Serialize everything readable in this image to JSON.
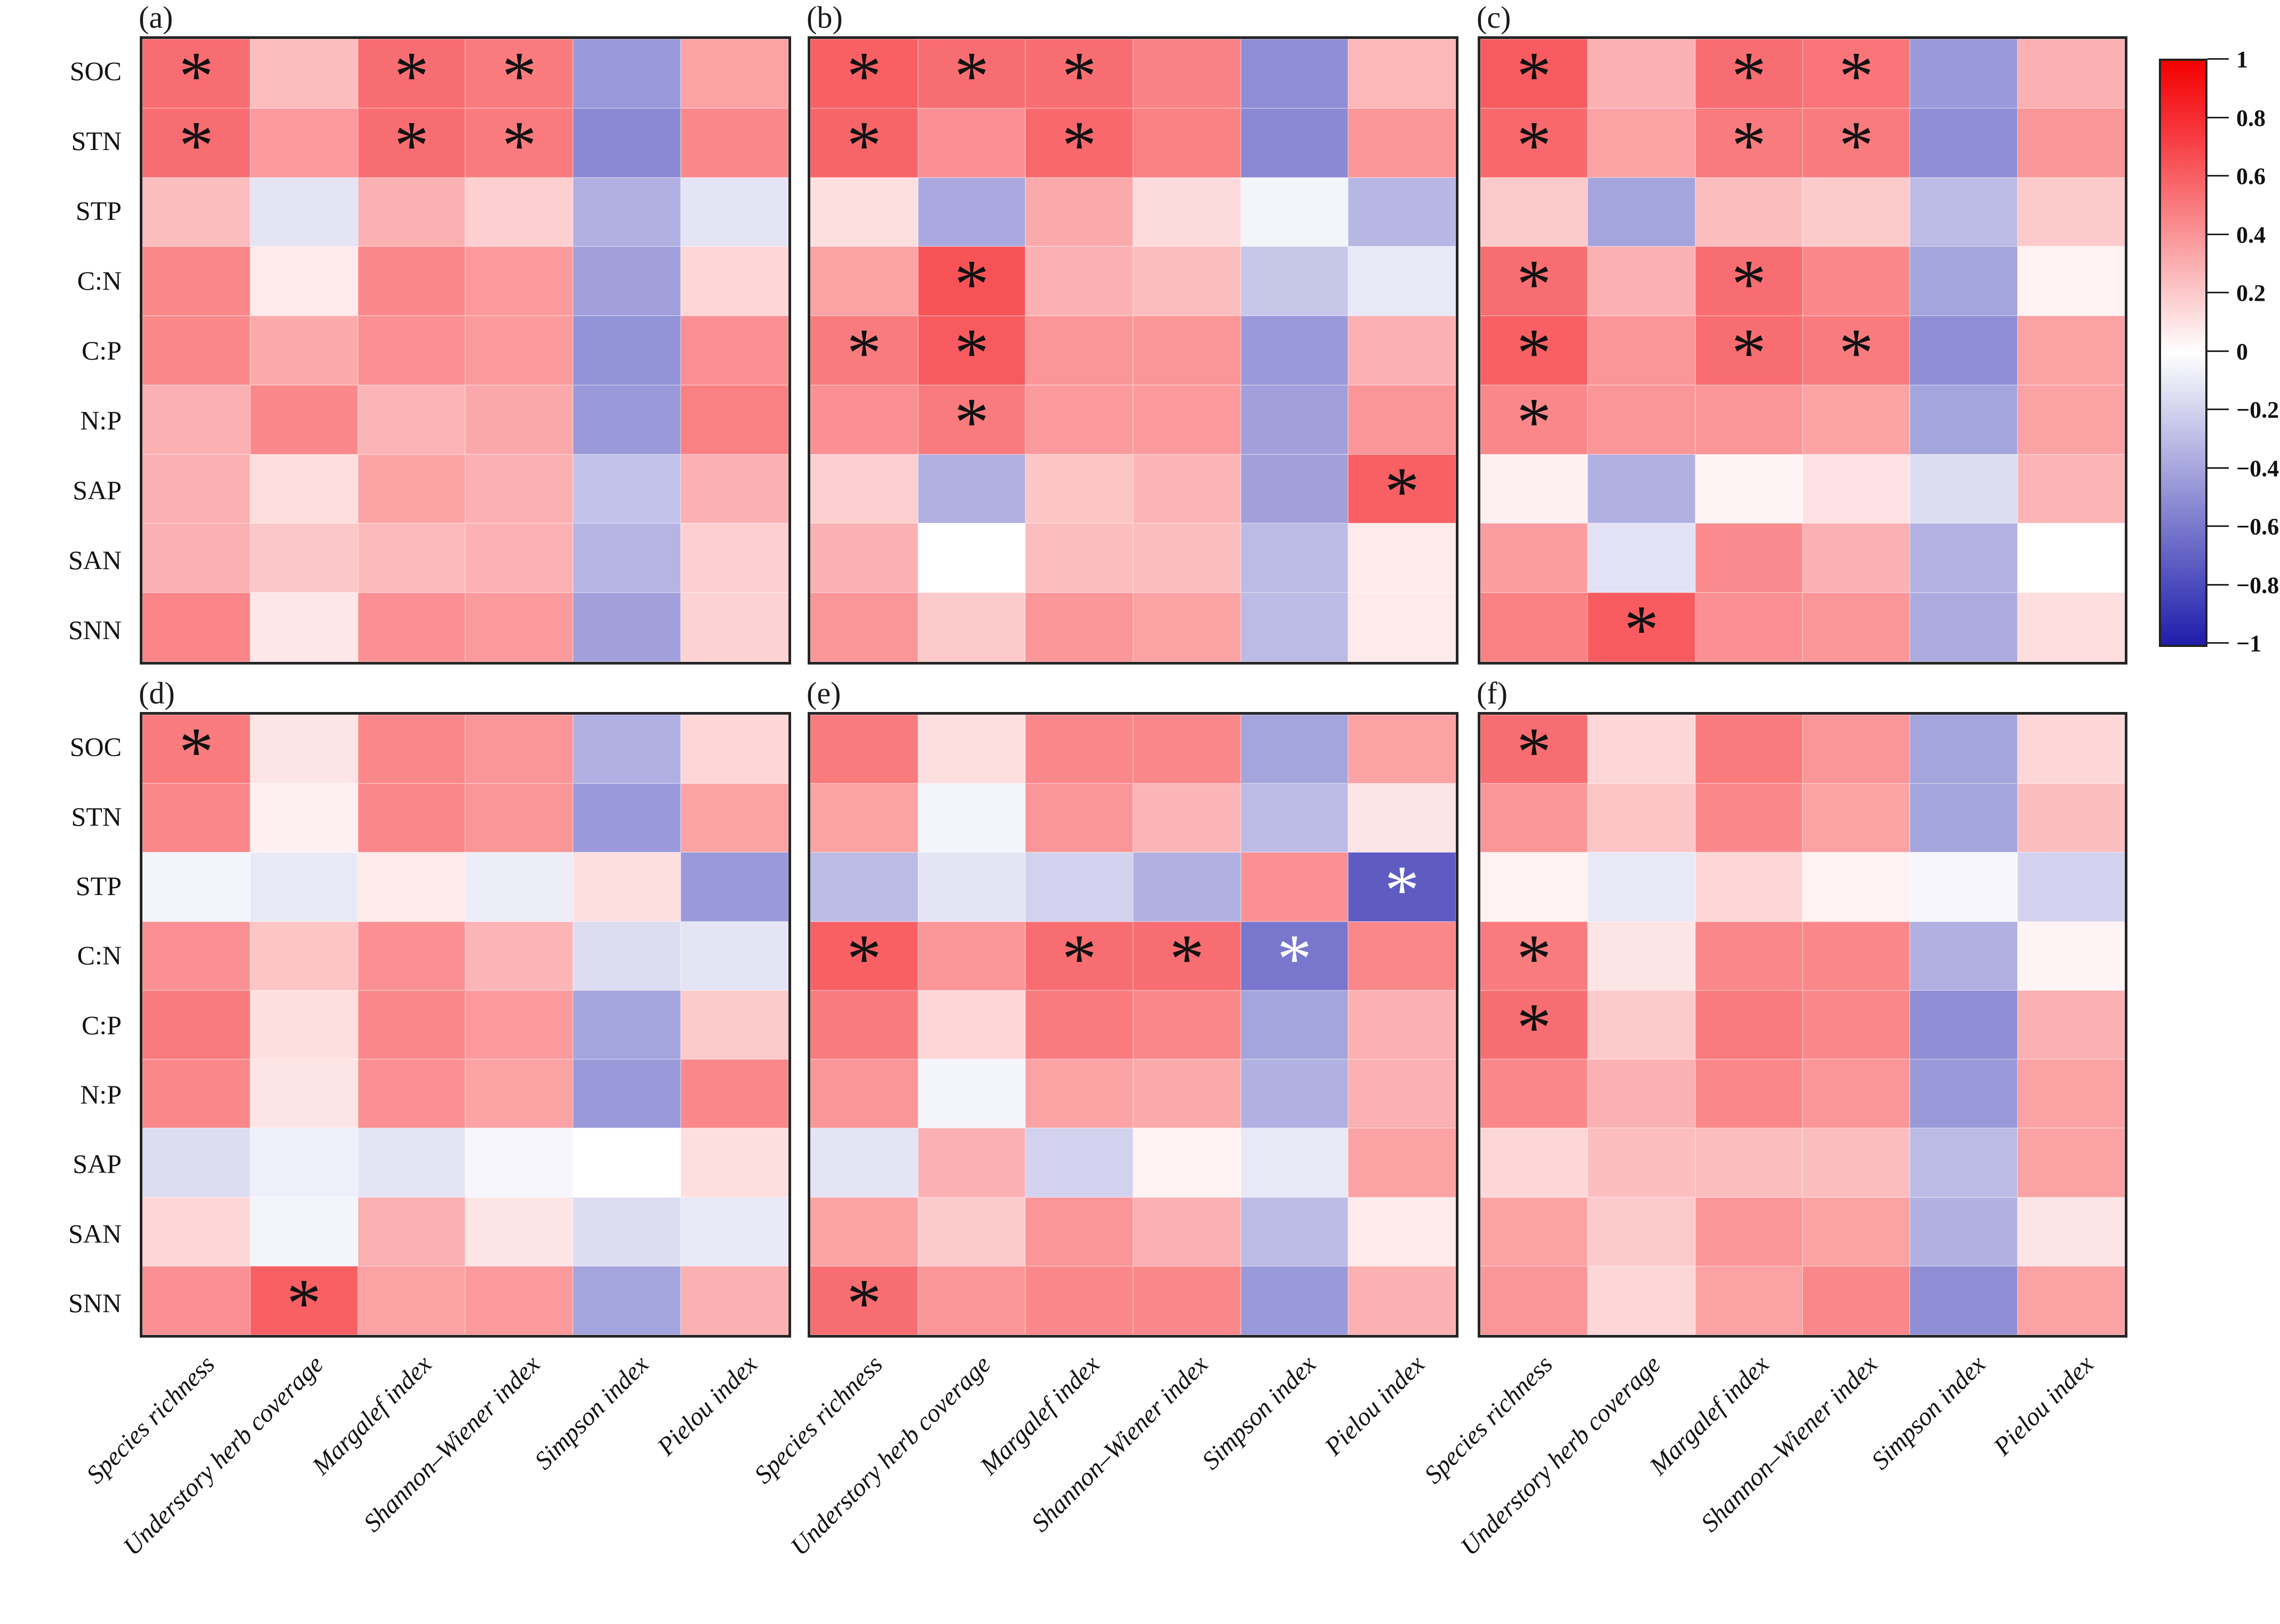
{
  "figure": {
    "background": "#ffffff"
  },
  "chart_data": {
    "type": "heatmap",
    "title": "",
    "rows": [
      "SOC",
      "STN",
      "STP",
      "C:N",
      "C:P",
      "N:P",
      "SAP",
      "SAN",
      "SNN"
    ],
    "columns": [
      "Species richness",
      "Understory herb coverage",
      "Margalef index",
      "Shannon–Wiener index",
      "Simpson index",
      "Pielou index"
    ],
    "value_range": [
      -1,
      1
    ],
    "legend_position": "right",
    "grid": true,
    "significance_marker": "*",
    "colorbar": {
      "ticks": [
        "1",
        "0.8",
        "0.6",
        "0.4",
        "0.2",
        "0",
        "−0.2",
        "−0.4",
        "−0.6",
        "−0.8",
        "−1"
      ],
      "tick_values": [
        1,
        0.8,
        0.6,
        0.4,
        0.2,
        0,
        -0.2,
        -0.4,
        -0.6,
        -0.8,
        -1
      ],
      "top_color": "#f30000",
      "mid_color": "#ffffff",
      "bottom_color": "#1f1dab"
    },
    "panels": [
      {
        "label": "(a)",
        "values": [
          [
            0.55,
            0.25,
            0.55,
            0.5,
            -0.45,
            0.35
          ],
          [
            0.55,
            0.38,
            0.55,
            0.5,
            -0.52,
            0.45
          ],
          [
            0.25,
            -0.12,
            0.3,
            0.18,
            -0.35,
            -0.12
          ],
          [
            0.45,
            0.08,
            0.45,
            0.38,
            -0.42,
            0.15
          ],
          [
            0.45,
            0.32,
            0.42,
            0.38,
            -0.48,
            0.42
          ],
          [
            0.3,
            0.45,
            0.28,
            0.33,
            -0.45,
            0.48
          ],
          [
            0.3,
            0.13,
            0.35,
            0.3,
            -0.27,
            0.3
          ],
          [
            0.3,
            0.21,
            0.26,
            0.29,
            -0.33,
            0.18
          ],
          [
            0.46,
            0.09,
            0.42,
            0.38,
            -0.42,
            0.17
          ]
        ],
        "stars": [
          [
            1,
            0,
            1,
            1,
            0,
            0
          ],
          [
            1,
            0,
            1,
            1,
            0,
            0
          ],
          [
            0,
            0,
            0,
            0,
            0,
            0
          ],
          [
            0,
            0,
            0,
            0,
            0,
            0
          ],
          [
            0,
            0,
            0,
            0,
            0,
            0
          ],
          [
            0,
            0,
            0,
            0,
            0,
            0
          ],
          [
            0,
            0,
            0,
            0,
            0,
            0
          ],
          [
            0,
            0,
            0,
            0,
            0,
            0
          ],
          [
            0,
            0,
            0,
            0,
            0,
            0
          ]
        ]
      },
      {
        "label": "(b)",
        "values": [
          [
            0.6,
            0.55,
            0.55,
            0.47,
            -0.5,
            0.27
          ],
          [
            0.58,
            0.42,
            0.57,
            0.48,
            -0.52,
            0.4
          ],
          [
            0.12,
            -0.38,
            0.32,
            0.14,
            -0.05,
            -0.32
          ],
          [
            0.35,
            0.65,
            0.3,
            0.25,
            -0.25,
            -0.1
          ],
          [
            0.5,
            0.62,
            0.4,
            0.4,
            -0.45,
            0.3
          ],
          [
            0.42,
            0.5,
            0.38,
            0.38,
            -0.42,
            0.4
          ],
          [
            0.18,
            -0.35,
            0.22,
            0.28,
            -0.42,
            0.6
          ],
          [
            0.3,
            0.0,
            0.25,
            0.25,
            -0.3,
            0.08
          ],
          [
            0.4,
            0.2,
            0.4,
            0.35,
            -0.3,
            0.08
          ]
        ],
        "stars": [
          [
            1,
            1,
            1,
            0,
            0,
            0
          ],
          [
            1,
            0,
            1,
            0,
            0,
            0
          ],
          [
            0,
            0,
            0,
            0,
            0,
            0
          ],
          [
            0,
            1,
            0,
            0,
            0,
            0
          ],
          [
            1,
            1,
            0,
            0,
            0,
            0
          ],
          [
            0,
            1,
            0,
            0,
            0,
            0
          ],
          [
            0,
            0,
            0,
            0,
            0,
            1
          ],
          [
            0,
            0,
            0,
            0,
            0,
            0
          ],
          [
            0,
            0,
            0,
            0,
            0,
            0
          ]
        ]
      },
      {
        "label": "(c)",
        "values": [
          [
            0.62,
            0.3,
            0.55,
            0.52,
            -0.45,
            0.3
          ],
          [
            0.57,
            0.35,
            0.5,
            0.5,
            -0.5,
            0.4
          ],
          [
            0.2,
            -0.4,
            0.25,
            0.2,
            -0.3,
            0.2
          ],
          [
            0.55,
            0.3,
            0.55,
            0.45,
            -0.4,
            0.05
          ],
          [
            0.6,
            0.4,
            0.55,
            0.5,
            -0.5,
            0.35
          ],
          [
            0.45,
            0.4,
            0.4,
            0.35,
            -0.4,
            0.35
          ],
          [
            0.06,
            -0.35,
            0.04,
            0.11,
            -0.15,
            0.28
          ],
          [
            0.37,
            -0.13,
            0.44,
            0.3,
            -0.34,
            0.0
          ],
          [
            0.48,
            0.62,
            0.42,
            0.4,
            -0.37,
            0.13
          ]
        ],
        "stars": [
          [
            1,
            0,
            1,
            1,
            0,
            0
          ],
          [
            1,
            0,
            1,
            1,
            0,
            0
          ],
          [
            0,
            0,
            0,
            0,
            0,
            0
          ],
          [
            1,
            0,
            1,
            0,
            0,
            0
          ],
          [
            1,
            0,
            1,
            1,
            0,
            0
          ],
          [
            1,
            0,
            0,
            0,
            0,
            0
          ],
          [
            0,
            0,
            0,
            0,
            0,
            0
          ],
          [
            0,
            0,
            0,
            0,
            0,
            0
          ],
          [
            0,
            1,
            0,
            0,
            0,
            0
          ]
        ]
      },
      {
        "label": "(d)",
        "values": [
          [
            0.5,
            0.1,
            0.45,
            0.4,
            -0.35,
            0.15
          ],
          [
            0.45,
            0.06,
            0.45,
            0.4,
            -0.45,
            0.35
          ],
          [
            -0.05,
            -0.1,
            0.08,
            -0.08,
            0.12,
            -0.45
          ],
          [
            0.42,
            0.22,
            0.42,
            0.28,
            -0.15,
            -0.12
          ],
          [
            0.5,
            0.12,
            0.45,
            0.38,
            -0.4,
            0.2
          ],
          [
            0.45,
            0.1,
            0.42,
            0.35,
            -0.45,
            0.45
          ],
          [
            -0.15,
            -0.07,
            -0.12,
            -0.04,
            0.0,
            0.12
          ],
          [
            0.15,
            -0.05,
            0.3,
            0.1,
            -0.15,
            -0.1
          ],
          [
            0.42,
            0.6,
            0.35,
            0.38,
            -0.4,
            0.3
          ]
        ],
        "stars": [
          [
            1,
            0,
            0,
            0,
            0,
            0
          ],
          [
            0,
            0,
            0,
            0,
            0,
            0
          ],
          [
            0,
            0,
            0,
            0,
            0,
            0
          ],
          [
            0,
            0,
            0,
            0,
            0,
            0
          ],
          [
            0,
            0,
            0,
            0,
            0,
            0
          ],
          [
            0,
            0,
            0,
            0,
            0,
            0
          ],
          [
            0,
            0,
            0,
            0,
            0,
            0
          ],
          [
            0,
            0,
            0,
            0,
            0,
            0
          ],
          [
            0,
            1,
            0,
            0,
            0,
            0
          ]
        ]
      },
      {
        "label": "(e)",
        "values": [
          [
            0.5,
            0.12,
            0.45,
            0.45,
            -0.4,
            0.35
          ],
          [
            0.35,
            -0.05,
            0.4,
            0.28,
            -0.3,
            0.1
          ],
          [
            -0.3,
            -0.12,
            -0.2,
            -0.35,
            0.42,
            -0.72
          ],
          [
            0.6,
            0.4,
            0.55,
            0.55,
            -0.6,
            0.45
          ],
          [
            0.5,
            0.15,
            0.5,
            0.45,
            -0.4,
            0.3
          ],
          [
            0.4,
            -0.05,
            0.35,
            0.32,
            -0.35,
            0.3
          ],
          [
            -0.12,
            0.3,
            -0.2,
            0.05,
            -0.1,
            0.35
          ],
          [
            0.35,
            0.2,
            0.4,
            0.3,
            -0.3,
            0.08
          ],
          [
            0.55,
            0.4,
            0.45,
            0.45,
            -0.45,
            0.3
          ]
        ],
        "stars": [
          [
            0,
            0,
            0,
            0,
            0,
            0
          ],
          [
            0,
            0,
            0,
            0,
            0,
            0
          ],
          [
            0,
            0,
            0,
            0,
            0,
            2
          ],
          [
            1,
            0,
            1,
            1,
            2,
            0
          ],
          [
            0,
            0,
            0,
            0,
            0,
            0
          ],
          [
            0,
            0,
            0,
            0,
            0,
            0
          ],
          [
            0,
            0,
            0,
            0,
            0,
            0
          ],
          [
            0,
            0,
            0,
            0,
            0,
            0
          ],
          [
            1,
            0,
            0,
            0,
            0,
            0
          ]
        ]
      },
      {
        "label": "(f)",
        "values": [
          [
            0.55,
            0.15,
            0.5,
            0.4,
            -0.4,
            0.15
          ],
          [
            0.4,
            0.22,
            0.45,
            0.35,
            -0.4,
            0.25
          ],
          [
            0.05,
            -0.1,
            0.15,
            0.05,
            -0.04,
            -0.2
          ],
          [
            0.5,
            0.1,
            0.45,
            0.45,
            -0.35,
            0.04
          ],
          [
            0.55,
            0.2,
            0.5,
            0.45,
            -0.5,
            0.3
          ],
          [
            0.45,
            0.3,
            0.45,
            0.4,
            -0.45,
            0.35
          ],
          [
            0.15,
            0.25,
            0.25,
            0.25,
            -0.3,
            0.35
          ],
          [
            0.35,
            0.2,
            0.4,
            0.35,
            -0.35,
            0.1
          ],
          [
            0.4,
            0.15,
            0.35,
            0.45,
            -0.5,
            0.35
          ]
        ],
        "stars": [
          [
            1,
            0,
            0,
            0,
            0,
            0
          ],
          [
            0,
            0,
            0,
            0,
            0,
            0
          ],
          [
            0,
            0,
            0,
            0,
            0,
            0
          ],
          [
            1,
            0,
            0,
            0,
            0,
            0
          ],
          [
            1,
            0,
            0,
            0,
            0,
            0
          ],
          [
            0,
            0,
            0,
            0,
            0,
            0
          ],
          [
            0,
            0,
            0,
            0,
            0,
            0
          ],
          [
            0,
            0,
            0,
            0,
            0,
            0
          ],
          [
            0,
            0,
            0,
            0,
            0,
            0
          ]
        ]
      }
    ]
  }
}
